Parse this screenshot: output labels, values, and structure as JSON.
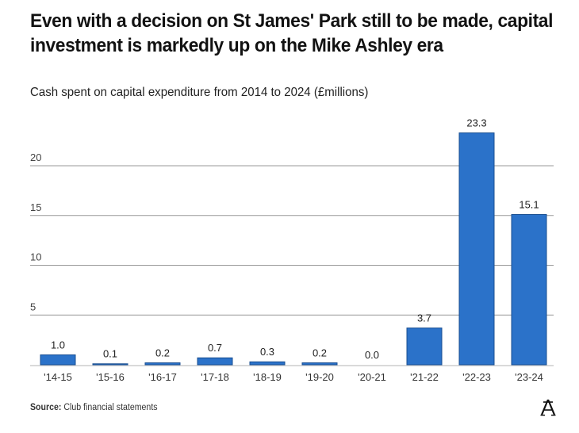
{
  "header": {
    "title": "Even with a decision on St James' Park still to be made, capital investment is markedly up on the Mike Ashley era",
    "subtitle": "Cash spent on capital expenditure from 2014 to 2024  (£millions)"
  },
  "footer": {
    "source_label": "Source:",
    "source_text": " Club financial statements",
    "logo_icon": "the-athletic-logo-icon"
  },
  "colors": {
    "bar_fill": "#2b72c9",
    "bar_stroke": "#1a4f91",
    "gridline": "#9a9a9a",
    "baseline": "#d9d9d9",
    "text": "#222222"
  },
  "chart_data": {
    "type": "bar",
    "title": "Even with a decision on St James' Park still to be made, capital investment is markedly up on the Mike Ashley era",
    "subtitle": "Cash spent on capital expenditure from 2014 to 2024  (£millions)",
    "xlabel": "",
    "ylabel": "",
    "categories": [
      "'14-15",
      "'15-16",
      "'16-17",
      "'17-18",
      "'18-19",
      "'19-20",
      "'20-21",
      "'21-22",
      "'22-23",
      "'23-24"
    ],
    "values": [
      1.0,
      0.1,
      0.2,
      0.7,
      0.3,
      0.2,
      0.0,
      3.7,
      23.3,
      15.1
    ],
    "data_labels": [
      "1.0",
      "0.1",
      "0.2",
      "0.7",
      "0.3",
      "0.2",
      "0.0",
      "3.7",
      "23.3",
      "15.1"
    ],
    "ylim": [
      0,
      25
    ],
    "yticks": [
      5,
      10,
      15,
      20
    ],
    "ytick_labels": [
      "5",
      "10",
      "15",
      "20"
    ],
    "grid": true,
    "legend": "none",
    "source": "Source: Club financial statements"
  }
}
